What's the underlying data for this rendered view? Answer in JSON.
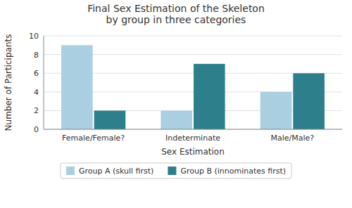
{
  "chart_data": {
    "type": "bar",
    "title": "Final Sex Estimation of the Skeleton\nby group in three categories",
    "xlabel": "Sex Estimation",
    "ylabel": "Number of Participants",
    "categories": [
      "Female/Female?",
      "Indeterminate",
      "Male/Male?"
    ],
    "series": [
      {
        "name": "Group A (skull first)",
        "color": "#aacfe0",
        "values": [
          9,
          2,
          4
        ]
      },
      {
        "name": "Group B (innominates first)",
        "color": "#2e7f8c",
        "values": [
          2,
          7,
          6
        ]
      }
    ],
    "ylim": [
      0,
      10
    ],
    "yticks": [
      0,
      2,
      4,
      6,
      8,
      10
    ],
    "grid": true,
    "legend": "bottom"
  }
}
